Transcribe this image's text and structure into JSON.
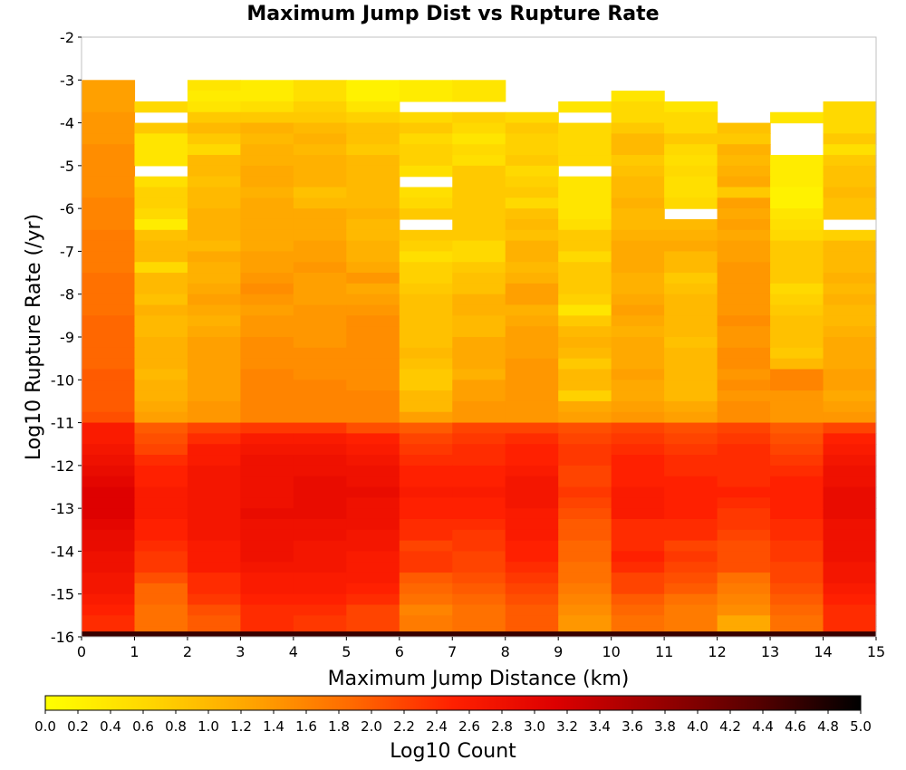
{
  "chart_data": {
    "type": "heatmap",
    "title": "Maximum Jump Dist vs Rupture Rate",
    "xlabel": "Maximum Jump Distance (km)",
    "ylabel": "Log10 Rupture Rate (/yr)",
    "colorbar_label": "Log10 Count",
    "x_range": [
      0,
      15
    ],
    "y_range": [
      -16,
      -2
    ],
    "x_ticks": [
      "0",
      "1",
      "2",
      "3",
      "4",
      "5",
      "6",
      "7",
      "8",
      "9",
      "10",
      "11",
      "12",
      "13",
      "14",
      "15"
    ],
    "y_ticks": [
      "-2",
      "-3",
      "-4",
      "-5",
      "-6",
      "-7",
      "-8",
      "-9",
      "-10",
      "-11",
      "-12",
      "-13",
      "-14",
      "-15",
      "-16"
    ],
    "color_range": [
      0.0,
      5.0
    ],
    "colorbar_ticks": [
      "0.0",
      "0.2",
      "0.4",
      "0.6",
      "0.8",
      "1.0",
      "1.2",
      "1.4",
      "1.6",
      "1.8",
      "2.0",
      "2.2",
      "2.4",
      "2.6",
      "2.8",
      "3.0",
      "3.2",
      "3.4",
      "3.6",
      "3.8",
      "4.0",
      "4.2",
      "4.4",
      "4.6",
      "4.8",
      "5.0"
    ],
    "colormap": [
      "#ffff00",
      "#ffd700",
      "#ffa500",
      "#ff6a00",
      "#ff2000",
      "#dd0000",
      "#9a0000",
      "#550000",
      "#000000"
    ],
    "x_bin_width": 1,
    "y_bin_width": 0.25,
    "bottom_row": {
      "y_range": [
        -16,
        -15.875
      ],
      "value": 4.6
    },
    "z_rows": [
      {
        "y": -3.125,
        "values": [
          1.3,
          null,
          0.4,
          0.3,
          0.5,
          0.2,
          0.3,
          0.4,
          null,
          null,
          null,
          null,
          null,
          null,
          null
        ]
      },
      {
        "y": -3.375,
        "values": [
          1.3,
          null,
          0.3,
          0.3,
          0.5,
          0.2,
          0.3,
          0.4,
          null,
          null,
          0.4,
          null,
          null,
          null,
          null
        ]
      },
      {
        "y": -3.625,
        "values": [
          1.3,
          0.6,
          0.4,
          0.5,
          0.7,
          0.4,
          null,
          null,
          null,
          0.4,
          0.6,
          0.4,
          null,
          null,
          0.6
        ]
      },
      {
        "y": -3.875,
        "values": [
          1.4,
          null,
          0.8,
          0.8,
          0.8,
          0.7,
          0.6,
          0.7,
          0.6,
          null,
          0.6,
          0.6,
          null,
          0.4,
          0.6
        ]
      },
      {
        "y": -4.125,
        "values": [
          1.4,
          0.8,
          1.0,
          1.1,
          1.0,
          0.9,
          0.8,
          0.6,
          0.8,
          0.6,
          0.8,
          0.6,
          0.9,
          null,
          0.6
        ]
      },
      {
        "y": -4.375,
        "values": [
          1.4,
          0.4,
          0.8,
          1.0,
          1.1,
          0.9,
          0.6,
          0.4,
          0.7,
          0.6,
          1.0,
          0.8,
          0.8,
          null,
          0.8
        ]
      },
      {
        "y": -4.625,
        "values": [
          1.5,
          0.4,
          0.6,
          1.1,
          1.0,
          0.8,
          0.7,
          0.6,
          0.7,
          0.6,
          1.0,
          0.6,
          1.1,
          null,
          0.5
        ]
      },
      {
        "y": -4.875,
        "values": [
          1.5,
          0.4,
          1.0,
          1.1,
          1.1,
          1.0,
          0.7,
          0.5,
          0.8,
          0.6,
          0.8,
          0.5,
          1.0,
          0.3,
          0.8
        ]
      },
      {
        "y": -5.125,
        "values": [
          1.5,
          null,
          1.0,
          1.2,
          1.1,
          1.0,
          0.5,
          0.8,
          0.6,
          null,
          0.9,
          0.6,
          1.1,
          0.3,
          0.9
        ]
      },
      {
        "y": -5.375,
        "values": [
          1.5,
          0.5,
          0.9,
          1.2,
          1.1,
          1.0,
          null,
          0.8,
          0.7,
          0.4,
          1.0,
          0.5,
          1.2,
          0.3,
          0.9
        ]
      },
      {
        "y": -5.625,
        "values": [
          1.5,
          0.7,
          1.0,
          1.1,
          0.9,
          1.0,
          0.5,
          0.8,
          0.8,
          0.4,
          1.0,
          0.5,
          0.8,
          0.2,
          1.0
        ]
      },
      {
        "y": -5.875,
        "values": [
          1.6,
          0.7,
          1.0,
          1.2,
          1.0,
          1.0,
          0.6,
          0.8,
          0.6,
          0.4,
          1.1,
          0.6,
          1.3,
          0.2,
          0.9
        ]
      },
      {
        "y": -6.125,
        "values": [
          1.6,
          0.6,
          1.1,
          1.2,
          1.2,
          1.1,
          0.8,
          0.8,
          0.9,
          0.4,
          1.0,
          null,
          1.2,
          0.4,
          0.9
        ]
      },
      {
        "y": -6.375,
        "values": [
          1.6,
          0.3,
          1.1,
          1.2,
          1.2,
          1.0,
          null,
          0.8,
          1.0,
          0.5,
          1.0,
          1.0,
          1.3,
          0.5,
          null
        ]
      },
      {
        "y": -6.625,
        "values": [
          1.7,
          0.9,
          1.1,
          1.2,
          1.2,
          1.0,
          0.8,
          0.8,
          0.9,
          0.8,
          1.1,
          1.1,
          1.2,
          0.6,
          0.7
        ]
      },
      {
        "y": -6.875,
        "values": [
          1.7,
          1.0,
          1.0,
          1.2,
          1.3,
          1.1,
          0.7,
          0.6,
          1.1,
          0.8,
          1.2,
          1.2,
          1.3,
          0.8,
          1.0
        ]
      },
      {
        "y": -7.125,
        "values": [
          1.7,
          1.0,
          1.2,
          1.3,
          1.3,
          1.1,
          0.5,
          0.6,
          1.1,
          0.6,
          1.2,
          1.0,
          1.3,
          0.8,
          1.0
        ]
      },
      {
        "y": -7.375,
        "values": [
          1.7,
          0.6,
          1.1,
          1.3,
          1.4,
          1.2,
          0.7,
          0.8,
          1.0,
          0.8,
          1.2,
          1.0,
          1.4,
          0.8,
          1.0
        ]
      },
      {
        "y": -7.625,
        "values": [
          1.8,
          1.0,
          1.1,
          1.4,
          1.3,
          1.4,
          0.7,
          0.9,
          1.1,
          0.8,
          1.1,
          0.8,
          1.4,
          0.8,
          1.1
        ]
      },
      {
        "y": -7.875,
        "values": [
          1.8,
          1.0,
          1.2,
          1.5,
          1.3,
          1.2,
          0.8,
          0.9,
          1.3,
          0.8,
          1.1,
          0.9,
          1.4,
          0.6,
          1.0
        ]
      },
      {
        "y": -8.125,
        "values": [
          1.8,
          0.9,
          1.3,
          1.4,
          1.3,
          1.3,
          0.9,
          1.1,
          1.3,
          0.7,
          1.2,
          1.0,
          1.4,
          0.7,
          1.1
        ]
      },
      {
        "y": -8.375,
        "values": [
          1.8,
          1.1,
          1.2,
          1.3,
          1.4,
          1.4,
          0.9,
          1.1,
          1.1,
          0.4,
          1.3,
          1.0,
          1.4,
          0.8,
          1.0
        ]
      },
      {
        "y": -8.625,
        "values": [
          1.9,
          1.0,
          1.1,
          1.4,
          1.4,
          1.5,
          0.9,
          1.0,
          1.2,
          0.8,
          1.2,
          1.0,
          1.5,
          0.9,
          1.0
        ]
      },
      {
        "y": -8.875,
        "values": [
          1.9,
          1.0,
          1.2,
          1.4,
          1.4,
          1.5,
          0.9,
          1.0,
          1.3,
          1.0,
          1.1,
          1.0,
          1.4,
          0.9,
          1.1
        ]
      },
      {
        "y": -9.125,
        "values": [
          1.9,
          1.1,
          1.3,
          1.5,
          1.4,
          1.5,
          0.9,
          1.2,
          1.3,
          1.1,
          1.2,
          0.9,
          1.4,
          0.9,
          1.2
        ]
      },
      {
        "y": -9.375,
        "values": [
          1.9,
          1.1,
          1.3,
          1.5,
          1.5,
          1.5,
          1.0,
          1.2,
          1.3,
          1.0,
          1.2,
          1.0,
          1.5,
          0.8,
          1.2
        ]
      },
      {
        "y": -9.625,
        "values": [
          1.9,
          1.1,
          1.3,
          1.5,
          1.5,
          1.5,
          0.9,
          1.2,
          1.4,
          0.8,
          1.2,
          1.0,
          1.5,
          1.0,
          1.2
        ]
      },
      {
        "y": -9.875,
        "values": [
          2.0,
          1.0,
          1.3,
          1.6,
          1.5,
          1.5,
          0.8,
          1.1,
          1.4,
          1.0,
          1.3,
          1.0,
          1.4,
          1.6,
          1.3
        ]
      },
      {
        "y": -10.125,
        "values": [
          2.0,
          1.1,
          1.3,
          1.6,
          1.6,
          1.5,
          0.8,
          1.3,
          1.4,
          1.0,
          1.2,
          1.0,
          1.5,
          1.6,
          1.3
        ]
      },
      {
        "y": -10.375,
        "values": [
          2.0,
          1.1,
          1.3,
          1.6,
          1.6,
          1.6,
          1.0,
          1.3,
          1.4,
          0.7,
          1.2,
          1.0,
          1.4,
          1.4,
          1.2
        ]
      },
      {
        "y": -10.625,
        "values": [
          2.0,
          1.2,
          1.4,
          1.6,
          1.6,
          1.6,
          1.0,
          1.4,
          1.4,
          1.2,
          1.3,
          1.2,
          1.5,
          1.4,
          1.3
        ]
      },
      {
        "y": -10.875,
        "values": [
          2.1,
          1.3,
          1.4,
          1.6,
          1.6,
          1.6,
          1.3,
          1.4,
          1.4,
          1.3,
          1.4,
          1.3,
          1.5,
          1.4,
          1.4
        ]
      },
      {
        "y": -11.125,
        "values": [
          2.6,
          2.0,
          2.2,
          2.3,
          2.3,
          2.1,
          2.0,
          2.2,
          2.2,
          2.1,
          2.2,
          2.1,
          2.2,
          2.0,
          2.2
        ]
      },
      {
        "y": -11.375,
        "values": [
          2.6,
          2.1,
          2.4,
          2.6,
          2.6,
          2.5,
          2.2,
          2.3,
          2.4,
          2.2,
          2.3,
          2.2,
          2.3,
          2.1,
          2.5
        ]
      },
      {
        "y": -11.625,
        "values": [
          2.7,
          2.2,
          2.6,
          2.7,
          2.7,
          2.6,
          2.3,
          2.4,
          2.5,
          2.3,
          2.4,
          2.3,
          2.4,
          2.2,
          2.6
        ]
      },
      {
        "y": -11.875,
        "values": [
          2.8,
          2.4,
          2.6,
          2.8,
          2.8,
          2.7,
          2.4,
          2.4,
          2.5,
          2.3,
          2.5,
          2.4,
          2.4,
          2.3,
          2.7
        ]
      },
      {
        "y": -12.125,
        "values": [
          2.9,
          2.5,
          2.7,
          2.8,
          2.8,
          2.8,
          2.5,
          2.5,
          2.6,
          2.2,
          2.5,
          2.4,
          2.4,
          2.4,
          2.8
        ]
      },
      {
        "y": -12.375,
        "values": [
          3.0,
          2.5,
          2.7,
          2.8,
          2.9,
          2.8,
          2.5,
          2.5,
          2.7,
          2.2,
          2.5,
          2.5,
          2.4,
          2.5,
          2.8
        ]
      },
      {
        "y": -12.625,
        "values": [
          3.1,
          2.6,
          2.7,
          2.8,
          2.9,
          2.9,
          2.6,
          2.6,
          2.7,
          2.3,
          2.6,
          2.5,
          2.5,
          2.5,
          2.9
        ]
      },
      {
        "y": -12.875,
        "values": [
          3.1,
          2.6,
          2.7,
          2.8,
          2.9,
          2.8,
          2.5,
          2.5,
          2.7,
          2.2,
          2.6,
          2.5,
          2.4,
          2.5,
          2.9
        ]
      },
      {
        "y": -13.125,
        "values": [
          3.1,
          2.6,
          2.7,
          2.9,
          2.9,
          2.8,
          2.5,
          2.5,
          2.6,
          2.1,
          2.6,
          2.5,
          2.3,
          2.5,
          2.9
        ]
      },
      {
        "y": -13.375,
        "values": [
          3.0,
          2.5,
          2.7,
          2.8,
          2.8,
          2.8,
          2.4,
          2.4,
          2.6,
          2.0,
          2.4,
          2.4,
          2.3,
          2.4,
          2.8
        ]
      },
      {
        "y": -13.625,
        "values": [
          2.9,
          2.5,
          2.7,
          2.8,
          2.8,
          2.7,
          2.4,
          2.3,
          2.6,
          2.0,
          2.4,
          2.4,
          2.2,
          2.4,
          2.8
        ]
      },
      {
        "y": -13.875,
        "values": [
          2.9,
          2.4,
          2.6,
          2.8,
          2.7,
          2.7,
          2.2,
          2.3,
          2.5,
          1.9,
          2.4,
          2.2,
          2.1,
          2.3,
          2.8
        ]
      },
      {
        "y": -14.125,
        "values": [
          2.8,
          2.3,
          2.6,
          2.8,
          2.7,
          2.6,
          2.3,
          2.2,
          2.5,
          1.9,
          2.5,
          2.3,
          2.1,
          2.3,
          2.8
        ]
      },
      {
        "y": -14.375,
        "values": [
          2.8,
          2.3,
          2.6,
          2.7,
          2.7,
          2.6,
          2.3,
          2.2,
          2.4,
          1.8,
          2.4,
          2.2,
          2.1,
          2.2,
          2.7
        ]
      },
      {
        "y": -14.625,
        "values": [
          2.7,
          2.1,
          2.4,
          2.6,
          2.6,
          2.6,
          2.0,
          2.1,
          2.3,
          1.8,
          2.2,
          2.1,
          1.8,
          2.2,
          2.7
        ]
      },
      {
        "y": -14.875,
        "values": [
          2.7,
          1.9,
          2.4,
          2.6,
          2.6,
          2.5,
          1.9,
          2.0,
          2.2,
          1.7,
          2.2,
          2.0,
          1.7,
          2.1,
          2.6
        ]
      },
      {
        "y": -15.125,
        "values": [
          2.6,
          1.9,
          2.3,
          2.5,
          2.5,
          2.4,
          1.8,
          1.9,
          2.1,
          1.6,
          2.0,
          1.8,
          1.6,
          2.0,
          2.5
        ]
      },
      {
        "y": -15.375,
        "values": [
          2.5,
          1.8,
          2.1,
          2.4,
          2.4,
          2.2,
          1.6,
          1.8,
          2.0,
          1.5,
          1.9,
          1.7,
          1.5,
          1.9,
          2.4
        ]
      },
      {
        "y": -15.625,
        "values": [
          2.4,
          1.8,
          2.0,
          2.4,
          2.3,
          2.2,
          1.7,
          1.8,
          2.0,
          1.4,
          1.8,
          1.7,
          1.2,
          1.8,
          2.4
        ]
      },
      {
        "y": -15.8125,
        "values": [
          2.4,
          1.8,
          2.0,
          2.4,
          2.3,
          2.2,
          1.7,
          1.8,
          2.0,
          1.4,
          1.8,
          1.7,
          1.2,
          1.8,
          2.4
        ]
      }
    ]
  }
}
